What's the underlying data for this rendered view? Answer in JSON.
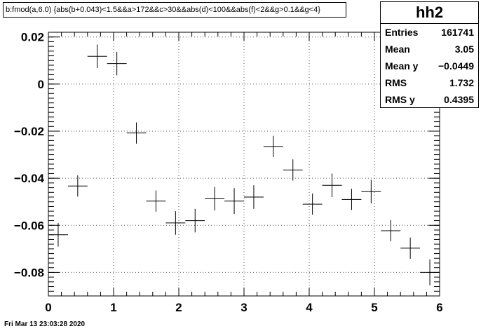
{
  "title": "b:fmod(a,6.0) {abs(b+0.043)<1.5&&a>172&&c>30&&abs(d)<100&&abs(f)<2&&g>0.1&&g<4}",
  "stats": {
    "name": "hh2",
    "rows": [
      {
        "label": "Entries",
        "value": "161741"
      },
      {
        "label": "Mean",
        "value": "3.05"
      },
      {
        "label": "Mean y",
        "value": "−0.0449"
      },
      {
        "label": "RMS",
        "value": "1.732"
      },
      {
        "label": "RMS y",
        "value": "0.4395"
      }
    ]
  },
  "timestamp": "Fri Mar 13 23:03:28 2020",
  "chart_data": {
    "type": "scatter",
    "title": "b:fmod(a,6.0) {abs(b+0.043)<1.5&&a>172&&c>30&&abs(d)<100&&abs(f)<2&&g>0.1&&g<4}",
    "xlabel": "",
    "ylabel": "",
    "xlim": [
      0,
      6
    ],
    "ylim": [
      -0.09,
      0.022
    ],
    "grid": true,
    "x_ticks": [
      0,
      1,
      2,
      3,
      4,
      5,
      6
    ],
    "x_tick_labels": [
      "0",
      "1",
      "2",
      "3",
      "4",
      "5",
      "6"
    ],
    "y_ticks": [
      0.02,
      0,
      -0.02,
      -0.04,
      -0.06,
      -0.08
    ],
    "y_tick_labels": [
      "0.02",
      "0",
      "−0.02",
      "−0.04",
      "−0.06",
      "−0.08"
    ],
    "x_error": 0.15,
    "points": [
      {
        "x": 0.15,
        "y": -0.064,
        "yerr": 0.005
      },
      {
        "x": 0.45,
        "y": -0.0433,
        "yerr": 0.0045
      },
      {
        "x": 0.75,
        "y": 0.0118,
        "yerr": 0.005
      },
      {
        "x": 1.05,
        "y": 0.0087,
        "yerr": 0.005
      },
      {
        "x": 1.35,
        "y": -0.0208,
        "yerr": 0.0045
      },
      {
        "x": 1.65,
        "y": -0.0497,
        "yerr": 0.0045
      },
      {
        "x": 1.95,
        "y": -0.059,
        "yerr": 0.005
      },
      {
        "x": 2.25,
        "y": -0.058,
        "yerr": 0.005
      },
      {
        "x": 2.55,
        "y": -0.0487,
        "yerr": 0.005
      },
      {
        "x": 2.85,
        "y": -0.0497,
        "yerr": 0.0055
      },
      {
        "x": 3.15,
        "y": -0.048,
        "yerr": 0.005
      },
      {
        "x": 3.45,
        "y": -0.0265,
        "yerr": 0.0045
      },
      {
        "x": 3.75,
        "y": -0.0365,
        "yerr": 0.0045
      },
      {
        "x": 4.05,
        "y": -0.051,
        "yerr": 0.0045
      },
      {
        "x": 4.35,
        "y": -0.043,
        "yerr": 0.005
      },
      {
        "x": 4.65,
        "y": -0.049,
        "yerr": 0.0045
      },
      {
        "x": 4.95,
        "y": -0.0457,
        "yerr": 0.005
      },
      {
        "x": 5.25,
        "y": -0.0623,
        "yerr": 0.0045
      },
      {
        "x": 5.55,
        "y": -0.0697,
        "yerr": 0.0045
      },
      {
        "x": 5.85,
        "y": -0.08,
        "yerr": 0.0055
      }
    ]
  }
}
